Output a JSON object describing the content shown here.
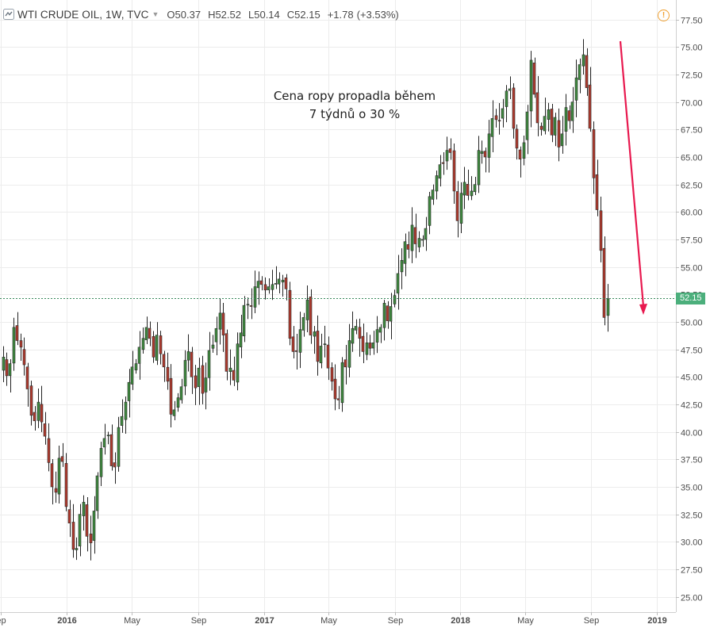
{
  "header": {
    "symbol": "WTI CRUDE OIL, 1W, TVC",
    "o_label": "O",
    "o_value": "50.37",
    "h_label": "H",
    "h_value": "52.52",
    "l_label": "L",
    "l_value": "50.14",
    "c_label": "C",
    "c_value": "52.15",
    "change": "+1.78",
    "change_pct": "(+3.53%)"
  },
  "annotation": {
    "line1": "Cena ropy propadla během",
    "line2": "7 týdnů o 30 %"
  },
  "last_price_label": "52.15",
  "colors": {
    "up": "#3f8a3f",
    "down": "#b03a2e",
    "wick": "#222222",
    "arrow": "#e8194f",
    "grid": "#ececec",
    "price_line": "#3a8a5c",
    "price_tag": "#4caf7c"
  },
  "icons": {
    "logo": "tradingview-logo-icon",
    "dropdown": "caret-down-icon",
    "alert": "exclamation-circle-icon"
  },
  "chart_data": {
    "type": "candlestick",
    "timeframe": "1W",
    "x_start": "2015-08-30",
    "x_end": "2019-02-05",
    "x_ticks": [
      {
        "label": "ep",
        "date": "2015-09-01"
      },
      {
        "label": "2016",
        "date": "2016-01-01"
      },
      {
        "label": "May",
        "date": "2016-05-01"
      },
      {
        "label": "Sep",
        "date": "2016-09-01"
      },
      {
        "label": "2017",
        "date": "2017-01-01"
      },
      {
        "label": "May",
        "date": "2017-05-01"
      },
      {
        "label": "Sep",
        "date": "2017-09-01"
      },
      {
        "label": "2018",
        "date": "2018-01-01"
      },
      {
        "label": "May",
        "date": "2018-05-01"
      },
      {
        "label": "Sep",
        "date": "2018-09-01"
      },
      {
        "label": "2019",
        "date": "2019-01-01"
      }
    ],
    "ylim": [
      23.6,
      78.7
    ],
    "y_ticks": [
      "25.00",
      "27.50",
      "30.00",
      "32.50",
      "35.00",
      "37.50",
      "40.00",
      "42.50",
      "45.00",
      "47.50",
      "50.00",
      "52.50",
      "55.00",
      "57.50",
      "60.00",
      "62.50",
      "65.00",
      "67.50",
      "70.00",
      "72.50",
      "75.00",
      "77.50"
    ],
    "last_price": 52.15,
    "closes": [
      46.8,
      45.1,
      46.2,
      49.5,
      48.3,
      47.7,
      46.1,
      43.9,
      41.5,
      41.0,
      42.7,
      40.9,
      39.6,
      37.2,
      35.0,
      34.5,
      37.6,
      37.3,
      33.2,
      31.7,
      29.3,
      29.4,
      32.5,
      33.6,
      30.5,
      29.9,
      32.8,
      36.0,
      38.5,
      39.4,
      39.7,
      36.9,
      36.8,
      40.4,
      41.4,
      42.7,
      44.5,
      45.9,
      46.2,
      47.7,
      48.5,
      49.5,
      48.5,
      46.8,
      48.8,
      47.1,
      45.9,
      44.6,
      41.6,
      42.0,
      43.1,
      44.1,
      46.5,
      47.3,
      45.0,
      44.0,
      45.8,
      43.5,
      44.9,
      47.4,
      47.9,
      49.4,
      50.8,
      48.8,
      45.5,
      45.8,
      44.7,
      48.0,
      49.0,
      51.5,
      51.6,
      51.4,
      53.2,
      53.7,
      53.4,
      52.9,
      53.2,
      53.4,
      53.5,
      53.9,
      53.8,
      53.0,
      48.5,
      47.3,
      47.3,
      49.3,
      50.4,
      52.0,
      48.8,
      49.1,
      46.4,
      47.8,
      48.0,
      45.8,
      44.6,
      43.0,
      42.9,
      46.3,
      45.9,
      48.3,
      49.4,
      49.6,
      48.5,
      47.3,
      48.1,
      47.6,
      48.1,
      49.3,
      49.5,
      51.7,
      50.1,
      51.4,
      52.4,
      54.4,
      55.6,
      57.3,
      56.6,
      58.8,
      57.1,
      57.6,
      57.5,
      58.5,
      61.4,
      62.0,
      63.3,
      64.3,
      64.4,
      65.6,
      65.4,
      61.9,
      59.2,
      61.7,
      62.7,
      61.5,
      61.9,
      62.5,
      65.6,
      65.5,
      65.0,
      67.1,
      68.5,
      68.4,
      68.3,
      69.4,
      71.0,
      71.2,
      67.6,
      65.8,
      64.8,
      66.3,
      69.1,
      73.8,
      70.7,
      68.1,
      67.5,
      68.7,
      69.3,
      67.0,
      68.6,
      65.9,
      67.1,
      69.5,
      68.3,
      70.0,
      72.2,
      73.4,
      74.3,
      71.3,
      67.6,
      63.1,
      60.2,
      56.5,
      50.4,
      52.1
    ]
  }
}
